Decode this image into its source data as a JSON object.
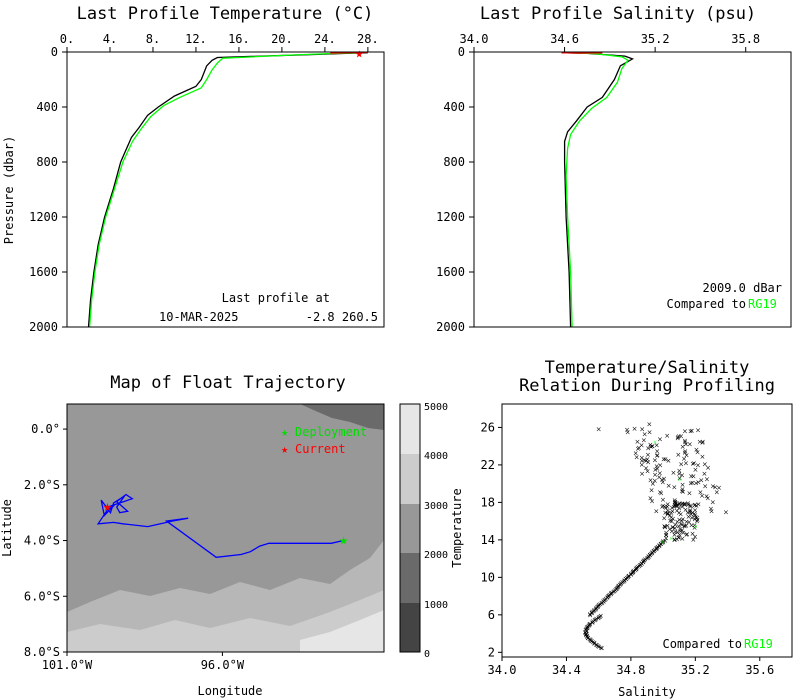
{
  "chart_data": [
    {
      "type": "line",
      "title": "Last Profile Temperature (°C)",
      "ylabel": "Pressure (dbar)",
      "xticks": [
        "0.",
        "4.",
        "8.",
        "12.",
        "16.",
        "20.",
        "24.",
        "28."
      ],
      "yticks": [
        "0",
        "400",
        "800",
        "1200",
        "1600",
        "2000"
      ],
      "xlim": [
        0,
        29.5
      ],
      "ylim": [
        2000,
        0
      ],
      "annotations": [
        "Last profile at",
        "10-MAR-2025",
        "-2.8 260.5"
      ],
      "series": [
        {
          "color": "#000000",
          "points": [
            [
              28,
              5
            ],
            [
              26,
              10
            ],
            [
              22,
              20
            ],
            [
              14,
              40
            ],
            [
              13.5,
              60
            ],
            [
              13,
              100
            ],
            [
              12.5,
              200
            ],
            [
              12,
              250
            ],
            [
              10,
              320
            ],
            [
              8.5,
              400
            ],
            [
              7.5,
              460
            ],
            [
              6.7,
              550
            ],
            [
              6,
              620
            ],
            [
              5,
              800
            ],
            [
              4.3,
              1000
            ],
            [
              3.5,
              1200
            ],
            [
              2.9,
              1400
            ],
            [
              2.5,
              1600
            ],
            [
              2.2,
              1800
            ],
            [
              2,
              2000
            ]
          ]
        },
        {
          "color": "#00ff00",
          "points": [
            [
              27.5,
              5
            ],
            [
              25,
              10
            ],
            [
              21,
              22
            ],
            [
              14.5,
              45
            ],
            [
              14,
              80
            ],
            [
              13.5,
              130
            ],
            [
              13,
              200
            ],
            [
              12.5,
              260
            ],
            [
              10.5,
              330
            ],
            [
              9,
              390
            ],
            [
              7.8,
              470
            ],
            [
              6.9,
              560
            ],
            [
              6.1,
              650
            ],
            [
              5.2,
              800
            ],
            [
              4.4,
              1000
            ],
            [
              3.6,
              1200
            ],
            [
              3,
              1400
            ],
            [
              2.6,
              1600
            ],
            [
              2.3,
              1800
            ],
            [
              2.1,
              2000
            ]
          ]
        },
        {
          "color": "#ff0000",
          "points": [
            [
              28,
              3
            ],
            [
              26,
              5
            ],
            [
              24.5,
              8
            ]
          ]
        }
      ]
    },
    {
      "type": "line",
      "title": "Last Profile Salinity (psu)",
      "xticks": [
        "34.0",
        "34.6",
        "35.2",
        "35.8"
      ],
      "yticks": [
        "0",
        "400",
        "800",
        "1200",
        "1600",
        "2000"
      ],
      "xlim": [
        34.0,
        36.1
      ],
      "ylim": [
        2000,
        0
      ],
      "annotations": [
        "2009.0 dBar",
        "Compared to ",
        "RG19"
      ],
      "series": [
        {
          "color": "#000000",
          "points": [
            [
              34.58,
              5
            ],
            [
              34.75,
              10
            ],
            [
              35.0,
              30
            ],
            [
              35.05,
              50
            ],
            [
              34.97,
              100
            ],
            [
              34.93,
              200
            ],
            [
              34.85,
              330
            ],
            [
              34.75,
              400
            ],
            [
              34.68,
              500
            ],
            [
              34.62,
              580
            ],
            [
              34.6,
              650
            ],
            [
              34.6,
              800
            ],
            [
              34.61,
              1200
            ],
            [
              34.63,
              1600
            ],
            [
              34.64,
              2000
            ]
          ]
        },
        {
          "color": "#00ff00",
          "points": [
            [
              34.6,
              5
            ],
            [
              34.8,
              12
            ],
            [
              34.98,
              35
            ],
            [
              35.02,
              60
            ],
            [
              34.98,
              120
            ],
            [
              34.95,
              220
            ],
            [
              34.88,
              330
            ],
            [
              34.78,
              410
            ],
            [
              34.7,
              500
            ],
            [
              34.64,
              600
            ],
            [
              34.62,
              700
            ],
            [
              34.61,
              900
            ],
            [
              34.62,
              1200
            ],
            [
              34.64,
              1600
            ],
            [
              34.65,
              2000
            ]
          ]
        },
        {
          "color": "#ff0000",
          "points": [
            [
              34.58,
              5
            ],
            [
              34.7,
              8
            ],
            [
              34.85,
              6
            ]
          ]
        }
      ]
    },
    {
      "type": "map",
      "title": "Map of Float Trajectory",
      "xlabel": "Longitude",
      "ylabel": "Latitude",
      "xticks": [
        "101.0°W",
        "96.0°W"
      ],
      "yticks": [
        "0.0°",
        "2.0°S",
        "4.0°S",
        "6.0°S",
        "8.0°S"
      ],
      "legend": [
        "Deployment",
        "Current"
      ],
      "colorbar": [
        "5000",
        "4000",
        "3000",
        "2000",
        "1000",
        "0"
      ],
      "colors": {
        "deployment": "#00dd00",
        "current": "#ff0000",
        "track": "#0000ff"
      },
      "track": [
        [
          -92.1,
          -4.0
        ],
        [
          -92.5,
          -4.1
        ],
        [
          -94.5,
          -4.1
        ],
        [
          -94.8,
          -4.2
        ],
        [
          -95.1,
          -4.4
        ],
        [
          -95.4,
          -4.5
        ],
        [
          -96.2,
          -4.6
        ],
        [
          -97.8,
          -3.3
        ],
        [
          -97.1,
          -3.2
        ],
        [
          -97.6,
          -3.3
        ],
        [
          -98.4,
          -3.5
        ],
        [
          -99.2,
          -3.4
        ],
        [
          -99.5,
          -3.35
        ],
        [
          -100.0,
          -3.4
        ],
        [
          -99.7,
          -2.9
        ],
        [
          -99.45,
          -2.7
        ],
        [
          -99.8,
          -3.1
        ],
        [
          -99.9,
          -2.55
        ],
        [
          -99.6,
          -3.0
        ],
        [
          -99.5,
          -2.65
        ],
        [
          -99.15,
          -2.4
        ],
        [
          -99.4,
          -2.8
        ],
        [
          -99.3,
          -3.0
        ],
        [
          -99.05,
          -2.95
        ],
        [
          -99.4,
          -2.6
        ],
        [
          -99.1,
          -2.35
        ],
        [
          -98.9,
          -2.5
        ],
        [
          -99.7,
          -2.8
        ]
      ]
    },
    {
      "type": "scatter",
      "title": "Temperature/Salinity",
      "subtitle": "Relation During Profiling",
      "xlabel": "Salinity",
      "ylabel": "Temperature",
      "xticks": [
        "34.0",
        "34.4",
        "34.8",
        "35.2",
        "35.6"
      ],
      "yticks": [
        "2",
        "6",
        "10",
        "14",
        "18",
        "22",
        "26"
      ],
      "xlim": [
        34.0,
        35.8
      ],
      "ylim": [
        1.5,
        28.5
      ],
      "annotations": [
        "Compared to ",
        "RG19"
      ]
    }
  ]
}
